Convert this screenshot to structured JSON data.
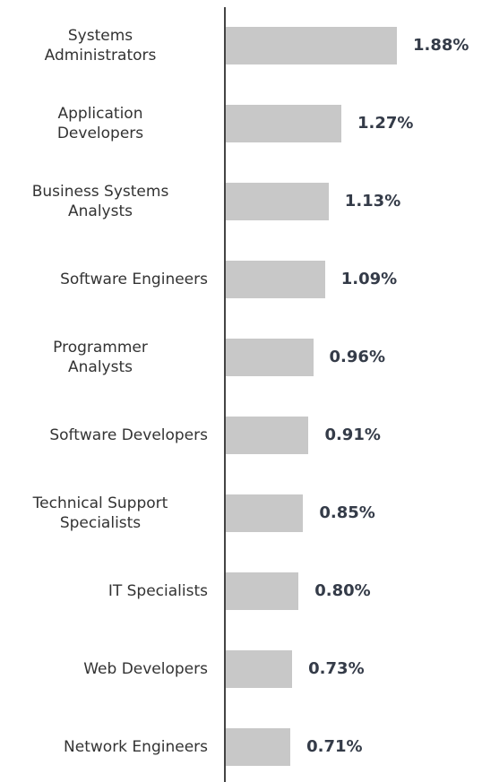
{
  "chart_data": {
    "type": "bar",
    "orientation": "horizontal",
    "categories": [
      "Systems\nAdministrators",
      "Application\nDevelopers",
      "Business Systems\nAnalysts",
      "Software Engineers",
      "Programmer\nAnalysts",
      "Software Developers",
      "Technical Support\nSpecialists",
      "IT Specialists",
      "Web Developers",
      "Network Engineers"
    ],
    "values": [
      1.88,
      1.27,
      1.13,
      1.09,
      0.96,
      0.91,
      0.85,
      0.8,
      0.73,
      0.71
    ],
    "value_labels": [
      "1.88%",
      "1.27%",
      "1.13%",
      "1.09%",
      "0.96%",
      "0.91%",
      "0.85%",
      "0.80%",
      "0.73%",
      "0.71%"
    ],
    "color": "#c8c8c8"
  }
}
